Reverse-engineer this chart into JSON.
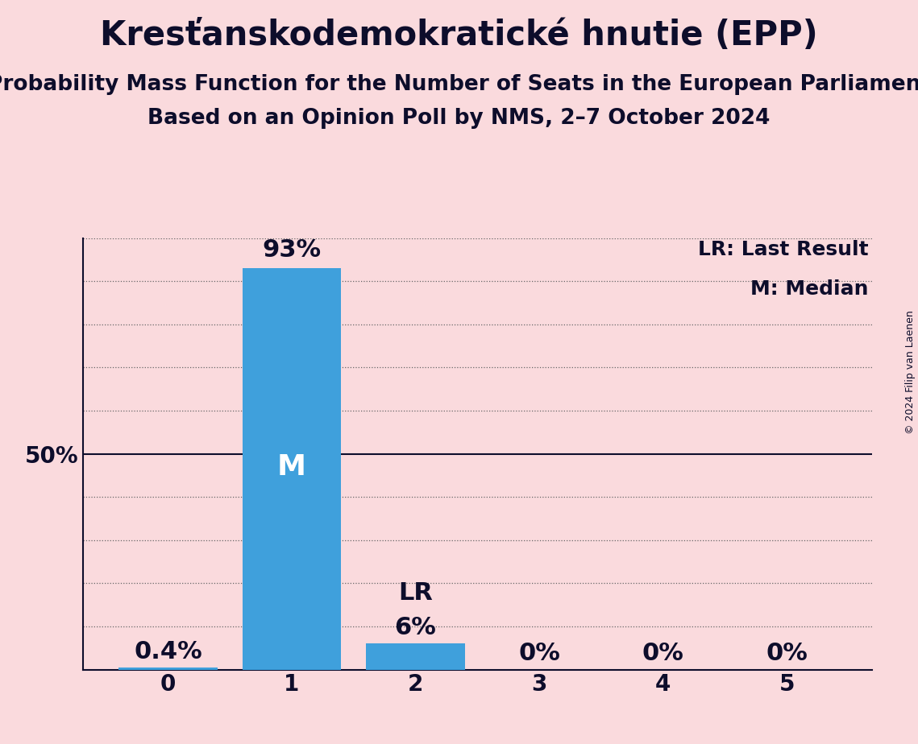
{
  "title": "Kresťanskodemokratické hnutie (EPP)",
  "subtitle1": "Probability Mass Function for the Number of Seats in the European Parliament",
  "subtitle2": "Based on an Opinion Poll by NMS, 2–7 October 2024",
  "copyright": "© 2024 Filip van Laenen",
  "categories": [
    0,
    1,
    2,
    3,
    4,
    5
  ],
  "values": [
    0.4,
    93.0,
    6.0,
    0.0,
    0.0,
    0.0
  ],
  "bar_color": "#3fa0dc",
  "background_color": "#fadadd",
  "text_color": "#0d0d2b",
  "median_seat": 1,
  "lr_seat": 2,
  "legend_lr": "LR: Last Result",
  "legend_m": "M: Median",
  "ylim": [
    0,
    100
  ],
  "title_fontsize": 30,
  "subtitle_fontsize": 19,
  "bar_label_fontsize": 22,
  "tick_fontsize": 20,
  "legend_fontsize": 18,
  "m_label_fontsize": 26,
  "lr_label_fontsize": 22,
  "copyright_fontsize": 9
}
